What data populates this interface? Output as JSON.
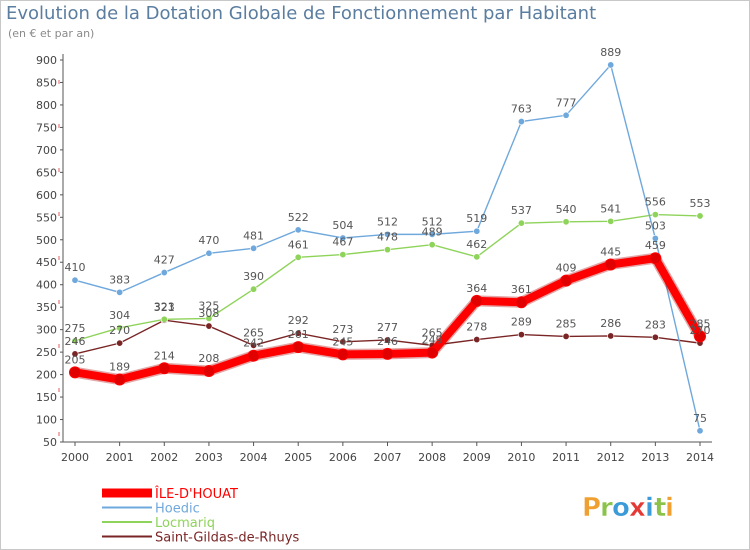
{
  "header": {
    "title": "Evolution de la Dotation Globale de Fonctionnement par Habitant",
    "subtitle": "(en € et par an)"
  },
  "brand": {
    "letters": [
      "P",
      "r",
      "o",
      "x",
      "i",
      "t",
      "i"
    ],
    "colors": [
      "#f0a030",
      "#8bc34a",
      "#3b9ad8",
      "#e53935",
      "#3b9ad8",
      "#8bc34a",
      "#f0a030"
    ]
  },
  "chart_data": {
    "type": "line",
    "title": "Evolution de la Dotation Globale de Fonctionnement par Habitant",
    "subtitle": "(en € et par an)",
    "xlabel": "",
    "ylabel": "",
    "ylim": [
      50,
      900
    ],
    "yticks": [
      50,
      100,
      150,
      200,
      250,
      300,
      350,
      400,
      450,
      500,
      550,
      600,
      650,
      700,
      750,
      800,
      850,
      900
    ],
    "grid": false,
    "legend_position": "bottom-left",
    "x": [
      "2000",
      "2001",
      "2002",
      "2003",
      "2004",
      "2005",
      "2006",
      "2007",
      "2008",
      "2009",
      "2010",
      "2011",
      "2012",
      "2013",
      "2014"
    ],
    "series": [
      {
        "name": "Saint-Gildas-de-Rhuys",
        "color": "#7a2525",
        "values": [
          246,
          270,
          321,
          308,
          265,
          292,
          273,
          277,
          265,
          278,
          289,
          285,
          286,
          283,
          270
        ],
        "labels": [
          "246",
          "270",
          "321",
          "308",
          "265",
          "292",
          "273",
          "277",
          "265",
          "278",
          "289",
          "285",
          "286",
          "283",
          "270"
        ]
      },
      {
        "name": "Locmariq",
        "color": "#8ed35a",
        "values": [
          275,
          304,
          323,
          325,
          390,
          461,
          467,
          478,
          489,
          462,
          537,
          540,
          541,
          556,
          553
        ],
        "labels": [
          "275",
          "304",
          "323",
          "325",
          "390",
          "461",
          "467",
          "478",
          "489",
          "462",
          "537",
          "540",
          "541",
          "556",
          "553"
        ]
      },
      {
        "name": "Hoedic",
        "color": "#6fa8dc",
        "values": [
          410,
          383,
          427,
          470,
          481,
          522,
          504,
          512,
          512,
          519,
          763,
          777,
          889,
          503,
          75
        ],
        "labels": [
          "410",
          "383",
          "427",
          "470",
          "481",
          "522",
          "504",
          "512",
          "512",
          "519",
          "763",
          "777",
          "889",
          "503",
          "75"
        ]
      },
      {
        "name": "ÎLE-D'HOUAT",
        "color": "#ff0000",
        "values": [
          205,
          189,
          214,
          208,
          242,
          261,
          245,
          246,
          249,
          364,
          361,
          409,
          445,
          459,
          285
        ],
        "labels": [
          "205",
          "189",
          "214",
          "208",
          "242",
          "261",
          "245",
          "246",
          "249",
          "364",
          "361",
          "409",
          "445",
          "459",
          "285"
        ]
      }
    ],
    "legend": [
      "ÎLE-D'HOUAT",
      "Hoedic",
      "Locmariq",
      "Saint-Gildas-de-Rhuys"
    ]
  }
}
